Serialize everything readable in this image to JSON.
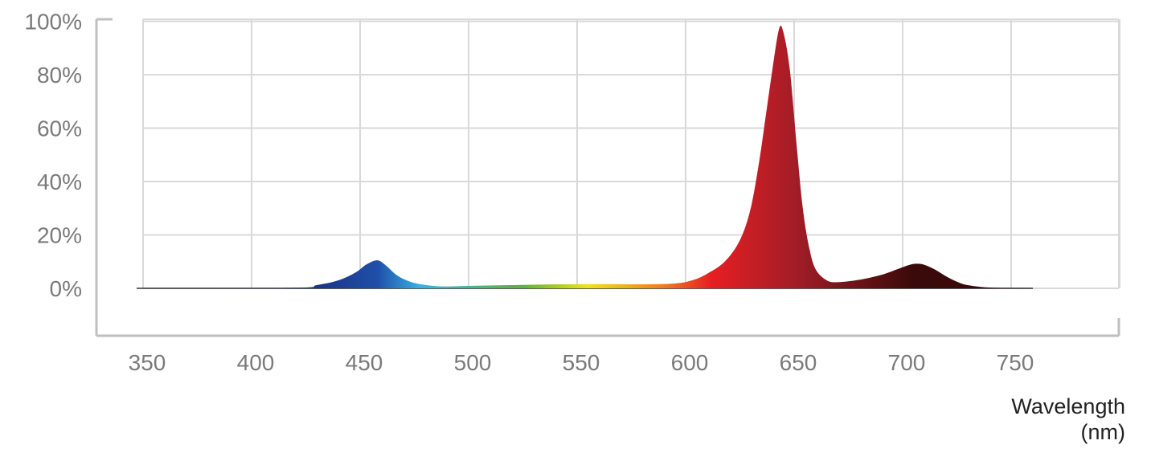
{
  "chart_data": {
    "type": "area",
    "title": "",
    "xlabel": "Wavelength\n(nm)",
    "xlabel_lines": [
      "Wavelength",
      "(nm)"
    ],
    "ylabel": "",
    "xlim": [
      350,
      800
    ],
    "ylim": [
      0,
      100
    ],
    "x_ticks": [
      350,
      400,
      450,
      500,
      550,
      600,
      650,
      700,
      750
    ],
    "x_tick_labels": [
      "350",
      "400",
      "450",
      "500",
      "550",
      "600",
      "650",
      "700",
      "750"
    ],
    "y_ticks": [
      0,
      20,
      40,
      60,
      80,
      100
    ],
    "y_tick_labels": [
      "0%",
      "20%",
      "40%",
      "60%",
      "80%",
      "100%"
    ],
    "grid": true,
    "legend": "none",
    "series": [
      {
        "x": [
          350,
          420,
          430,
          440,
          448,
          453,
          458,
          462,
          466,
          470,
          475,
          480,
          485,
          490,
          500,
          520,
          540,
          560,
          580,
          595,
          603,
          610,
          618,
          625,
          630,
          634,
          637,
          640,
          643,
          645,
          648,
          651,
          654,
          657,
          660,
          665,
          670,
          680,
          690,
          697,
          702,
          706,
          710,
          715,
          720,
          725,
          730,
          740,
          760
        ],
        "values": [
          0,
          0.2,
          1.2,
          3,
          6,
          9,
          10.5,
          8.5,
          5.5,
          3.5,
          2,
          1.3,
          0.8,
          0.7,
          0.9,
          1.2,
          1.5,
          1.6,
          1.5,
          1.8,
          3,
          5.5,
          10,
          18,
          30,
          48,
          65,
          82,
          97,
          96,
          82,
          55,
          30,
          15,
          7,
          3,
          2.3,
          3.2,
          5,
          7,
          8.5,
          9.2,
          8.8,
          7,
          4.5,
          2.5,
          1.2,
          0.3,
          0
        ]
      }
    ],
    "spectrum_colors": {
      "violet": "#1a2a7a",
      "blue": "#1f4fa8",
      "cyan": "#39b3e6",
      "green": "#5cb531",
      "yellow": "#f2e21a",
      "orange": "#f07a1e",
      "red": "#e61e23",
      "deep_red": "#a31d27",
      "far_red": "#3a0a0a"
    },
    "grid_color": "#d9d9d9",
    "axis_color": "#bfbfbf"
  }
}
